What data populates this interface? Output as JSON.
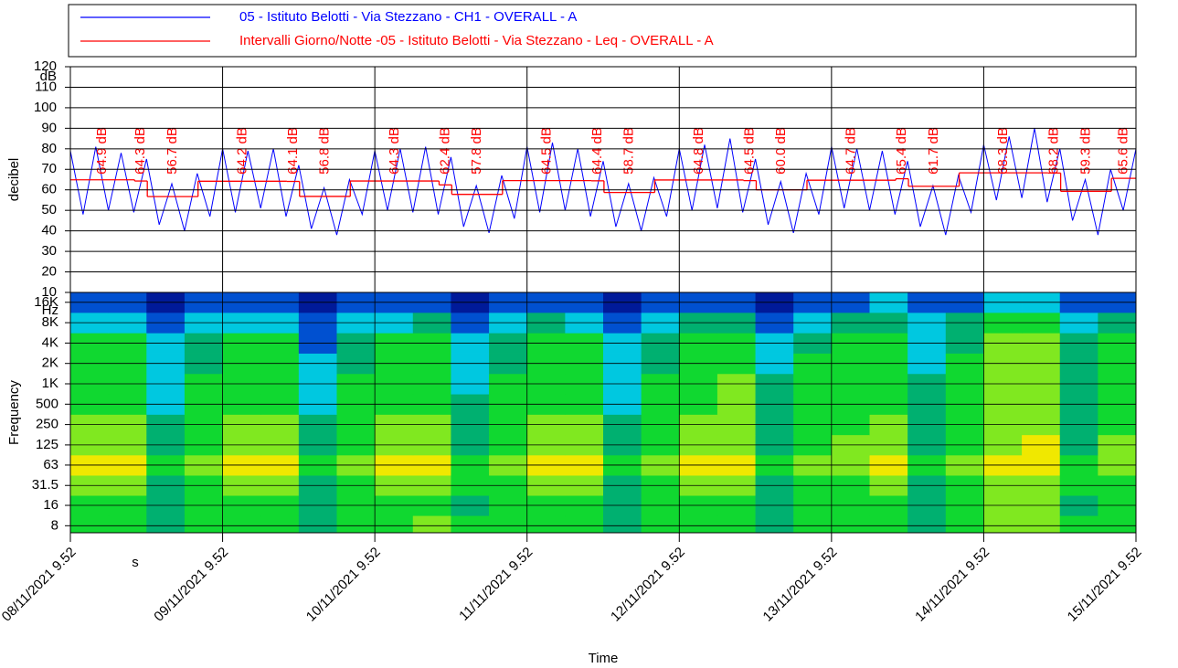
{
  "chart_data": [
    {
      "type": "line",
      "ylabel": "decibel",
      "y_unit": "dB",
      "ylim": [
        10,
        120
      ],
      "yticks": [
        10,
        20,
        30,
        40,
        50,
        60,
        70,
        80,
        90,
        100,
        110,
        120
      ],
      "xlim": [
        0,
        168
      ],
      "xticks": [
        0,
        24,
        48,
        72,
        96,
        120,
        144,
        168
      ],
      "grid": true,
      "series": [
        {
          "name": "05 - Istituto Belotti - Via Stezzano - CH1 - OVERALL - A",
          "color": "#0000ff",
          "x": [
            0,
            2,
            4,
            6,
            8,
            10,
            12,
            14,
            16,
            18,
            20,
            22,
            24,
            26,
            28,
            30,
            32,
            34,
            36,
            38,
            40,
            42,
            44,
            46,
            48,
            50,
            52,
            54,
            56,
            58,
            60,
            62,
            64,
            66,
            68,
            70,
            72,
            74,
            76,
            78,
            80,
            82,
            84,
            86,
            88,
            90,
            92,
            94,
            96,
            98,
            100,
            102,
            104,
            106,
            108,
            110,
            112,
            114,
            116,
            118,
            120,
            122,
            124,
            126,
            128,
            130,
            132,
            134,
            136,
            138,
            140,
            142,
            144,
            146,
            148,
            150,
            152,
            154,
            156,
            158,
            160,
            162,
            164,
            166,
            168
          ],
          "values": [
            79,
            48,
            81,
            50,
            78,
            49,
            75,
            43,
            63,
            40,
            68,
            47,
            80,
            49,
            79,
            51,
            80,
            47,
            72,
            41,
            61,
            38,
            65,
            48,
            79,
            50,
            80,
            49,
            81,
            48,
            76,
            42,
            62,
            39,
            67,
            46,
            81,
            49,
            83,
            50,
            80,
            47,
            74,
            42,
            63,
            40,
            66,
            47,
            80,
            50,
            82,
            51,
            85,
            49,
            75,
            43,
            64,
            39,
            68,
            48,
            81,
            51,
            80,
            50,
            79,
            48,
            74,
            42,
            62,
            38,
            67,
            49,
            82,
            55,
            86,
            56,
            90,
            54,
            80,
            45,
            65,
            38,
            70,
            50,
            80
          ]
        },
        {
          "name": "Intervalli Giorno/Notte -05 - Istituto Belotti - Via Stezzano - Leq - OVERALL - A",
          "color": "#ff0000",
          "step": true,
          "x": [
            0,
            10.13,
            12.13,
            20.13,
            34.13,
            36.13,
            44.13,
            58.13,
            60.13,
            68.13,
            82.13,
            84.13,
            92.13,
            106.13,
            108.13,
            116.13,
            130.13,
            132.13,
            140.13,
            154.13,
            156.13,
            164.13
          ],
          "values": [
            64.9,
            64.3,
            56.7,
            64.2,
            64.1,
            56.8,
            64.3,
            62.4,
            57.8,
            64.5,
            64.4,
            58.7,
            64.8,
            64.5,
            60.0,
            64.7,
            65.4,
            61.7,
            68.3,
            68.2,
            59.3,
            65.6
          ],
          "value_labels": [
            "64.9 dB",
            "64.3 dB",
            "56.7 dB",
            "64.2 dB",
            "64.1 dB",
            "56.8 dB",
            "64.3 dB",
            "62.4 dB",
            "57.8 dB",
            "64.5 dB",
            "64.4 dB",
            "58.7 dB",
            "64.8 dB",
            "64.5 dB",
            "60.0 dB",
            "64.7 dB",
            "65.4 dB",
            "61.7 dB",
            "68.3 dB",
            "68.2 dB",
            "59.3 dB",
            "65.6 dB"
          ]
        }
      ]
    },
    {
      "type": "heatmap",
      "ylabel": "Frequency",
      "y_unit": "Hz",
      "xlabel": "Time",
      "x_note": "s",
      "ylog": true,
      "ylim": [
        6.3,
        22400
      ],
      "yticks": [
        8,
        16,
        31.5,
        63,
        125,
        250,
        500,
        {
          "value": 1000,
          "label": "1K"
        },
        {
          "value": 2000,
          "label": "2K"
        },
        {
          "value": 4000,
          "label": "4K"
        },
        {
          "value": 8000,
          "label": "8K"
        },
        {
          "value": 16000,
          "label": "16K"
        }
      ],
      "xlim": [
        0,
        168
      ],
      "xticks": [
        {
          "value": 0,
          "label": "08/11/2021 9.52"
        },
        {
          "value": 24,
          "label": "09/11/2021 9.52"
        },
        {
          "value": 48,
          "label": "10/11/2021 9.52"
        },
        {
          "value": 72,
          "label": "11/11/2021 9.52"
        },
        {
          "value": 96,
          "label": "12/11/2021 9.52"
        },
        {
          "value": 120,
          "label": "13/11/2021 9.52"
        },
        {
          "value": 144,
          "label": "14/11/2021 9.52"
        },
        {
          "value": 168,
          "label": "15/11/2021 9.52"
        }
      ],
      "grid": true,
      "x": [
        0,
        6,
        12,
        18,
        24,
        30,
        36,
        42,
        48,
        54,
        60,
        66,
        72,
        78,
        84,
        90,
        96,
        102,
        108,
        114,
        120,
        126,
        132,
        138,
        144,
        150,
        156,
        162
      ],
      "y": [
        8,
        16,
        31.5,
        63,
        125,
        250,
        500,
        1000,
        2000,
        4000,
        8000,
        16000
      ],
      "zlim": [
        10,
        60
      ],
      "colors": [
        "#001a99",
        "#0050d0",
        "#00c8e0",
        "#00b070",
        "#10d830",
        "#80e820",
        "#f0e800",
        "#a02820"
      ],
      "z": [
        [
          40,
          41,
          34,
          38,
          41,
          40,
          33,
          37,
          40,
          42,
          35,
          38,
          41,
          40,
          34,
          39,
          40,
          41,
          33,
          38,
          38,
          39,
          30,
          36,
          42,
          44,
          36,
          40
        ],
        [
          40,
          40,
          32,
          38,
          41,
          39,
          31,
          37,
          40,
          41,
          33,
          38,
          40,
          40,
          32,
          38,
          41,
          40,
          32,
          37,
          39,
          40,
          31,
          36,
          42,
          43,
          34,
          39
        ],
        [
          42,
          43,
          34,
          40,
          43,
          42,
          33,
          39,
          42,
          43,
          35,
          40,
          43,
          42,
          34,
          40,
          42,
          43,
          34,
          40,
          41,
          42,
          33,
          39,
          44,
          45,
          36,
          41
        ],
        [
          49,
          48,
          36,
          44,
          48,
          49,
          35,
          43,
          49,
          48,
          37,
          44,
          50,
          48,
          36,
          44,
          49,
          50,
          36,
          45,
          47,
          48,
          35,
          43,
          50,
          51,
          38,
          46
        ],
        [
          44,
          45,
          32,
          40,
          45,
          44,
          31,
          39,
          44,
          45,
          33,
          40,
          45,
          44,
          32,
          40,
          45,
          46,
          32,
          41,
          43,
          44,
          31,
          39,
          47,
          48,
          34,
          42
        ],
        [
          42,
          42,
          30,
          38,
          43,
          42,
          29,
          37,
          42,
          43,
          31,
          38,
          43,
          42,
          30,
          38,
          42,
          43,
          30,
          38,
          41,
          42,
          30,
          37,
          45,
          46,
          33,
          40
        ],
        [
          40,
          41,
          28,
          36,
          41,
          40,
          27,
          35,
          40,
          41,
          29,
          36,
          41,
          40,
          28,
          36,
          41,
          42,
          29,
          37,
          40,
          41,
          29,
          36,
          44,
          45,
          32,
          39
        ],
        [
          40,
          40,
          28,
          36,
          40,
          40,
          27,
          35,
          40,
          41,
          28,
          36,
          41,
          40,
          28,
          36,
          41,
          42,
          29,
          37,
          40,
          41,
          29,
          36,
          44,
          46,
          32,
          39
        ],
        [
          38,
          38,
          26,
          34,
          38,
          38,
          25,
          33,
          38,
          39,
          26,
          34,
          39,
          38,
          26,
          34,
          39,
          40,
          27,
          35,
          38,
          40,
          28,
          35,
          43,
          45,
          31,
          38
        ],
        [
          35,
          35,
          24,
          32,
          35,
          35,
          22,
          31,
          35,
          36,
          24,
          32,
          36,
          35,
          23,
          32,
          36,
          37,
          25,
          33,
          36,
          38,
          26,
          34,
          42,
          44,
          30,
          36
        ],
        [
          28,
          28,
          20,
          26,
          28,
          27,
          19,
          25,
          28,
          29,
          20,
          26,
          29,
          28,
          20,
          26,
          30,
          31,
          21,
          27,
          33,
          34,
          23,
          29,
          37,
          38,
          26,
          31
        ],
        [
          20,
          20,
          15,
          18,
          20,
          19,
          14,
          17,
          20,
          21,
          15,
          18,
          21,
          20,
          15,
          18,
          21,
          22,
          16,
          19,
          22,
          23,
          17,
          20,
          24,
          25,
          18,
          21
        ]
      ]
    }
  ]
}
